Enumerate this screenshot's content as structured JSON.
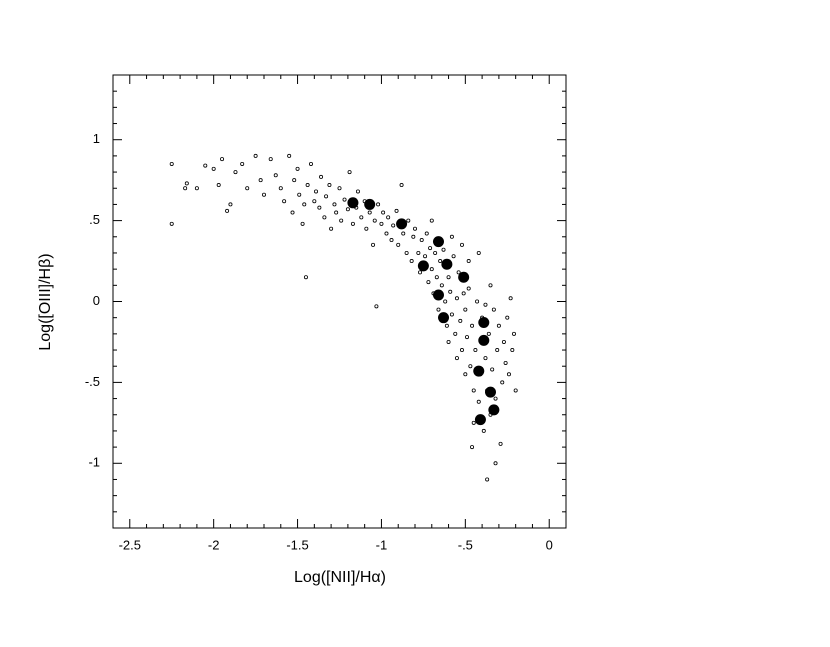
{
  "chart_data": {
    "type": "scatter",
    "xlabel": "Log([NII]/Hα)",
    "ylabel": "Log([OIII]/Hβ)",
    "xlim": [
      -2.6,
      0.1
    ],
    "ylim": [
      -1.4,
      1.4
    ],
    "xticks": [
      -2.5,
      -2,
      -1.5,
      -1,
      {
        "value": -0.5,
        "label": "-.5"
      },
      0
    ],
    "yticks": [
      -1,
      {
        "value": -0.5,
        "label": "-.5"
      },
      0,
      {
        "value": 0.5,
        "label": ".5"
      },
      1
    ],
    "xminorticks": [
      -2.4,
      -2.3,
      -2.2,
      -2.1,
      -1.9,
      -1.8,
      -1.7,
      -1.6,
      -1.4,
      -1.3,
      -1.2,
      -1.1,
      -0.9,
      -0.8,
      -0.7,
      -0.6,
      -0.4,
      -0.3,
      -0.2,
      -0.1
    ],
    "yminorticks": [
      1.3,
      1.2,
      1.1,
      0.9,
      0.8,
      0.7,
      0.6,
      0.4,
      0.3,
      0.2,
      0.1,
      -0.1,
      -0.2,
      -0.3,
      -0.4,
      -0.6,
      -0.7,
      -0.8,
      -0.9,
      -1.1,
      -1.2,
      -1.3
    ],
    "grid": false,
    "series": [
      {
        "color": "#000000",
        "marker": "open",
        "x": [
          -2.25,
          -2.25,
          -2.17,
          -2.16,
          -2.1,
          -2.05,
          -2.0,
          -1.97,
          -1.95,
          -1.92,
          -1.9,
          -1.87,
          -1.83,
          -1.8,
          -1.75,
          -1.72,
          -1.7,
          -1.66,
          -1.63,
          -1.6,
          -1.58,
          -1.55,
          -1.53,
          -1.52,
          -1.5,
          -1.49,
          -1.47,
          -1.46,
          -1.45,
          -1.44,
          -1.42,
          -1.4,
          -1.39,
          -1.37,
          -1.36,
          -1.34,
          -1.33,
          -1.31,
          -1.3,
          -1.28,
          -1.27,
          -1.25,
          -1.24,
          -1.22,
          -1.2,
          -1.19,
          -1.17,
          -1.15,
          -1.14,
          -1.12,
          -1.1,
          -1.09,
          -1.07,
          -1.05,
          -1.04,
          -1.03,
          -1.02,
          -1.0,
          -0.99,
          -0.97,
          -0.96,
          -0.94,
          -0.93,
          -0.91,
          -0.9,
          -0.88,
          -0.87,
          -0.85,
          -0.84,
          -0.82,
          -0.81,
          -0.8,
          -0.78,
          -0.77,
          -0.76,
          -0.74,
          -0.73,
          -0.72,
          -0.71,
          -0.7,
          -0.69,
          -0.68,
          -0.67,
          -0.66,
          -0.65,
          -0.64,
          -0.63,
          -0.62,
          -0.61,
          -0.6,
          -0.59,
          -0.58,
          -0.57,
          -0.56,
          -0.55,
          -0.54,
          -0.53,
          -0.52,
          -0.51,
          -0.5,
          -0.49,
          -0.48,
          -0.47,
          -0.46,
          -0.45,
          -0.44,
          -0.43,
          -0.42,
          -0.41,
          -0.4,
          -0.39,
          -0.38,
          -0.37,
          -0.37,
          -0.36,
          -0.35,
          -0.34,
          -0.33,
          -0.32,
          -0.32,
          -0.31,
          -0.3,
          -0.29,
          -0.28,
          -0.27,
          -0.26,
          -0.25,
          -0.24,
          -0.23,
          -0.22,
          -0.21,
          -0.2,
          -0.46,
          -0.45,
          -0.5,
          -0.55,
          -0.6,
          -0.48,
          -0.42,
          -0.38,
          -0.52,
          -0.7,
          -0.58,
          -0.35
        ],
        "values": [
          0.85,
          0.48,
          0.7,
          0.73,
          0.7,
          0.84,
          0.82,
          0.72,
          0.88,
          0.56,
          0.6,
          0.8,
          0.85,
          0.7,
          0.9,
          0.75,
          0.66,
          0.88,
          0.78,
          0.7,
          0.62,
          0.9,
          0.55,
          0.75,
          0.82,
          0.66,
          0.48,
          0.6,
          0.15,
          0.72,
          0.85,
          0.62,
          0.68,
          0.58,
          0.77,
          0.52,
          0.65,
          0.72,
          0.45,
          0.6,
          0.55,
          0.7,
          0.5,
          0.63,
          0.57,
          0.8,
          0.48,
          0.58,
          0.68,
          0.52,
          0.62,
          0.45,
          0.55,
          0.35,
          0.5,
          -0.03,
          0.6,
          0.48,
          0.55,
          0.42,
          0.52,
          0.38,
          0.47,
          0.56,
          0.35,
          0.72,
          0.42,
          0.3,
          0.5,
          0.25,
          0.4,
          0.45,
          0.3,
          0.18,
          0.38,
          0.28,
          0.42,
          0.12,
          0.33,
          0.2,
          0.05,
          0.3,
          0.15,
          -0.05,
          0.25,
          0.1,
          0.32,
          0.0,
          -0.15,
          0.15,
          0.06,
          -0.08,
          0.28,
          -0.2,
          0.02,
          0.18,
          -0.12,
          -0.3,
          0.05,
          -0.05,
          -0.22,
          0.08,
          -0.4,
          -0.15,
          -0.55,
          -0.3,
          0.0,
          -0.62,
          -0.45,
          -0.1,
          -0.8,
          -0.35,
          -1.1,
          -0.55,
          -0.2,
          -0.7,
          -0.42,
          -0.05,
          -1.0,
          -0.6,
          -0.3,
          -0.15,
          -0.88,
          -0.5,
          -0.25,
          -0.38,
          -0.1,
          -0.45,
          0.02,
          -0.3,
          -0.2,
          -0.55,
          -0.9,
          -0.75,
          -0.45,
          -0.35,
          -0.25,
          0.25,
          0.3,
          -0.02,
          0.35,
          0.5,
          0.4,
          0.1
        ]
      },
      {
        "color": "#000000",
        "marker": "filled",
        "x": [
          -1.17,
          -1.07,
          -0.88,
          -0.66,
          -0.75,
          -0.61,
          -0.51,
          -0.66,
          -0.63,
          -0.39,
          -0.39,
          -0.42,
          -0.35,
          -0.33,
          -0.41
        ],
        "values": [
          0.61,
          0.6,
          0.48,
          0.37,
          0.22,
          0.23,
          0.15,
          0.04,
          -0.1,
          -0.13,
          -0.24,
          -0.43,
          -0.56,
          -0.67,
          -0.73
        ]
      }
    ]
  }
}
